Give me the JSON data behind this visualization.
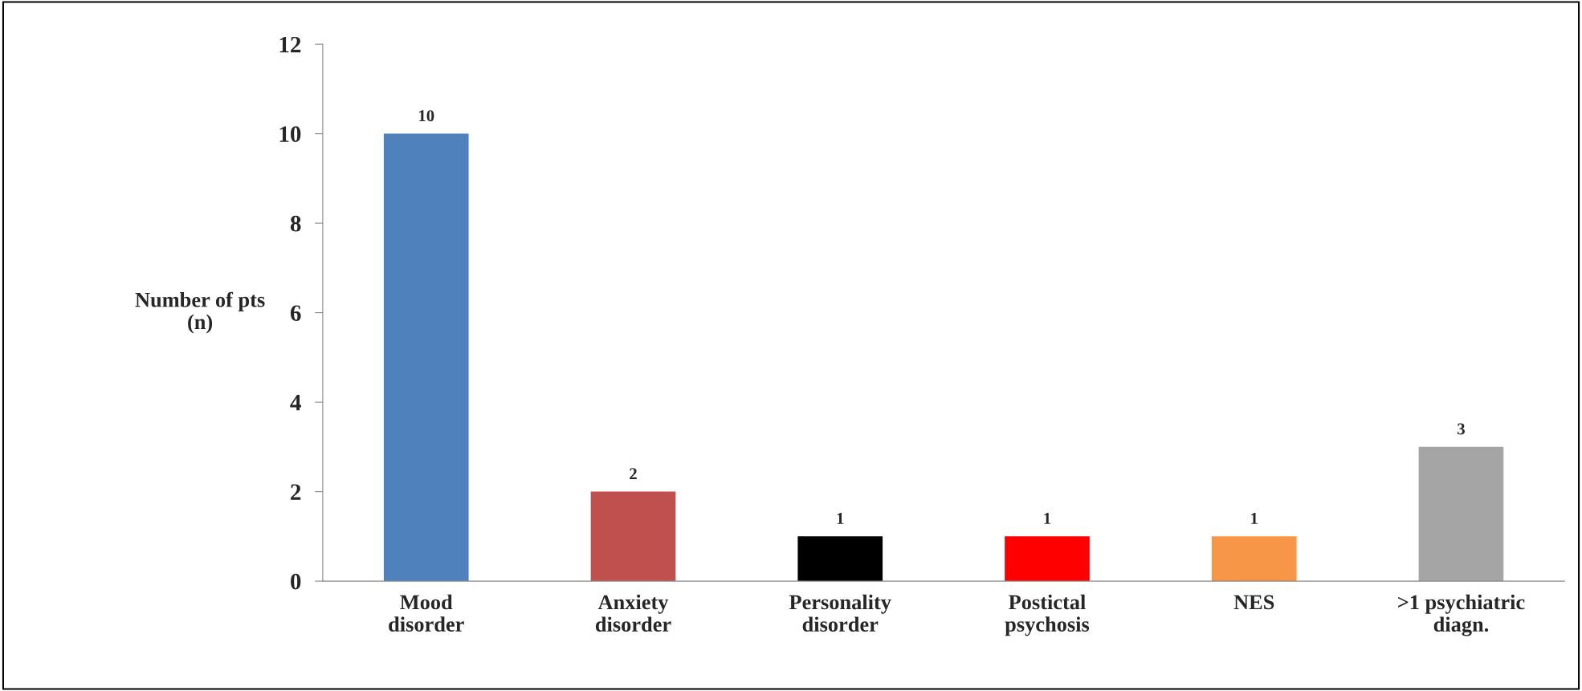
{
  "chart_data": {
    "type": "bar",
    "categories": [
      "Mood\ndisorder",
      "Anxiety\ndisorder",
      "Personality\ndisorder",
      "Postictal\npsychosis",
      "NES",
      ">1 psychiatric\ndiagn."
    ],
    "values": [
      10,
      2,
      1,
      1,
      1,
      3
    ],
    "colors": [
      "#4f81bd",
      "#c0504d",
      "#000000",
      "#ff0000",
      "#f79646",
      "#a5a5a5"
    ],
    "ylabel": "Number of pts\n(n)",
    "ylim": [
      0,
      12
    ],
    "yticks": [
      0,
      2,
      4,
      6,
      8,
      10,
      12
    ],
    "data_labels": true,
    "grid": false,
    "legend": false
  }
}
